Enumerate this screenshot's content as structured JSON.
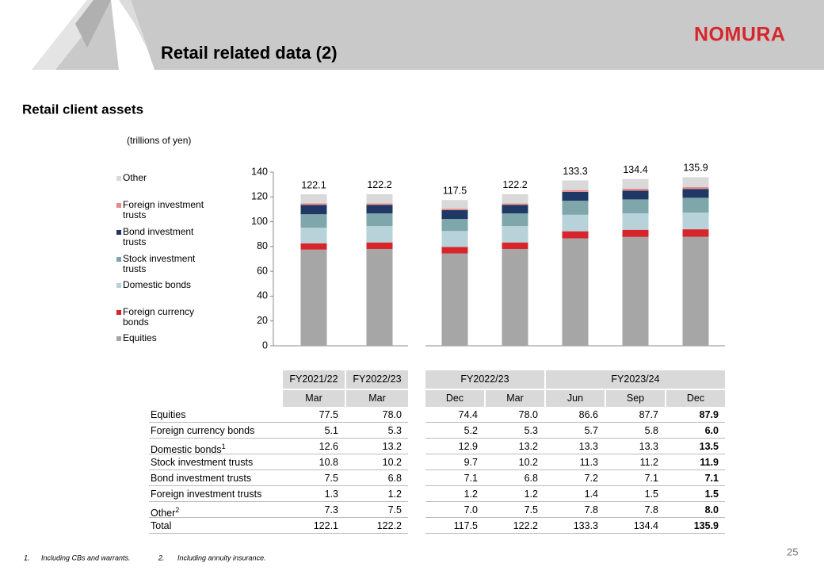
{
  "header": {
    "title": "Retail related data (2)",
    "logo": "NOMURA"
  },
  "section_title": "Retail client assets",
  "chart_data": {
    "type": "bar",
    "stacked": true,
    "unit_label": "(trillions of yen)",
    "series": [
      {
        "name": "Equities",
        "color": "#a6a6a6",
        "values": [
          77.5,
          78.0,
          74.4,
          78.0,
          86.6,
          87.7,
          87.9
        ]
      },
      {
        "name": "Foreign currency bonds",
        "color": "#d7262b",
        "values": [
          5.1,
          5.3,
          5.2,
          5.3,
          5.7,
          5.8,
          6.0
        ]
      },
      {
        "name": "Domestic bonds",
        "color": "#b7d2d8",
        "values": [
          12.6,
          13.2,
          12.9,
          13.2,
          13.3,
          13.3,
          13.5
        ]
      },
      {
        "name": "Stock investment trusts",
        "color": "#7fa6ab",
        "values": [
          10.8,
          10.2,
          9.7,
          10.2,
          11.3,
          11.2,
          11.9
        ]
      },
      {
        "name": "Bond investment trusts",
        "color": "#1f3864",
        "values": [
          7.5,
          6.8,
          7.1,
          6.8,
          7.2,
          7.1,
          7.1
        ]
      },
      {
        "name": "Foreign investment trusts",
        "color": "#e8898a",
        "values": [
          1.3,
          1.2,
          1.2,
          1.2,
          1.4,
          1.5,
          1.5
        ]
      },
      {
        "name": "Other",
        "color": "#d9d9d9",
        "values": [
          7.3,
          7.5,
          7.0,
          7.5,
          7.8,
          7.8,
          8.0
        ]
      }
    ],
    "totals": [
      122.1,
      122.2,
      117.5,
      122.2,
      133.3,
      134.4,
      135.9
    ],
    "ylim": [
      0,
      140
    ],
    "yticks": [
      0,
      20,
      40,
      60,
      80,
      100,
      120,
      140
    ]
  },
  "table": {
    "left_headers": [
      "FY2021/22",
      "FY2022/23"
    ],
    "left_sub": [
      "Mar",
      "Mar"
    ],
    "right_headers": [
      "FY2022/23",
      "FY2023/24"
    ],
    "right_sub": [
      "Dec",
      "Mar",
      "Jun",
      "Sep",
      "Dec"
    ],
    "rows": [
      {
        "label": "Equities",
        "cells": [
          "77.5",
          "78.0",
          "74.4",
          "78.0",
          "86.6",
          "87.7",
          "87.9"
        ]
      },
      {
        "label": "Foreign currency bonds",
        "cells": [
          "5.1",
          "5.3",
          "5.2",
          "5.3",
          "5.7",
          "5.8",
          "6.0"
        ]
      },
      {
        "label": "Domestic bonds",
        "note": "1",
        "cells": [
          "12.6",
          "13.2",
          "12.9",
          "13.2",
          "13.3",
          "13.3",
          "13.5"
        ]
      },
      {
        "label": "Stock investment trusts",
        "cells": [
          "10.8",
          "10.2",
          "9.7",
          "10.2",
          "11.3",
          "11.2",
          "11.9"
        ]
      },
      {
        "label": "Bond investment trusts",
        "cells": [
          "7.5",
          "6.8",
          "7.1",
          "6.8",
          "7.2",
          "7.1",
          "7.1"
        ]
      },
      {
        "label": "Foreign investment trusts",
        "cells": [
          "1.3",
          "1.2",
          "1.2",
          "1.2",
          "1.4",
          "1.5",
          "1.5"
        ]
      },
      {
        "label": "Other",
        "note": "2",
        "cells": [
          "7.3",
          "7.5",
          "7.0",
          "7.5",
          "7.8",
          "7.8",
          "8.0"
        ]
      },
      {
        "label": "Total",
        "cells": [
          "122.1",
          "122.2",
          "117.5",
          "122.2",
          "133.3",
          "134.4",
          "135.9"
        ]
      }
    ]
  },
  "footnotes": [
    {
      "mark": "1.",
      "text": "Including CBs and warrants."
    },
    {
      "mark": "2.",
      "text": "Including annuity insurance."
    }
  ],
  "page_number": "25"
}
